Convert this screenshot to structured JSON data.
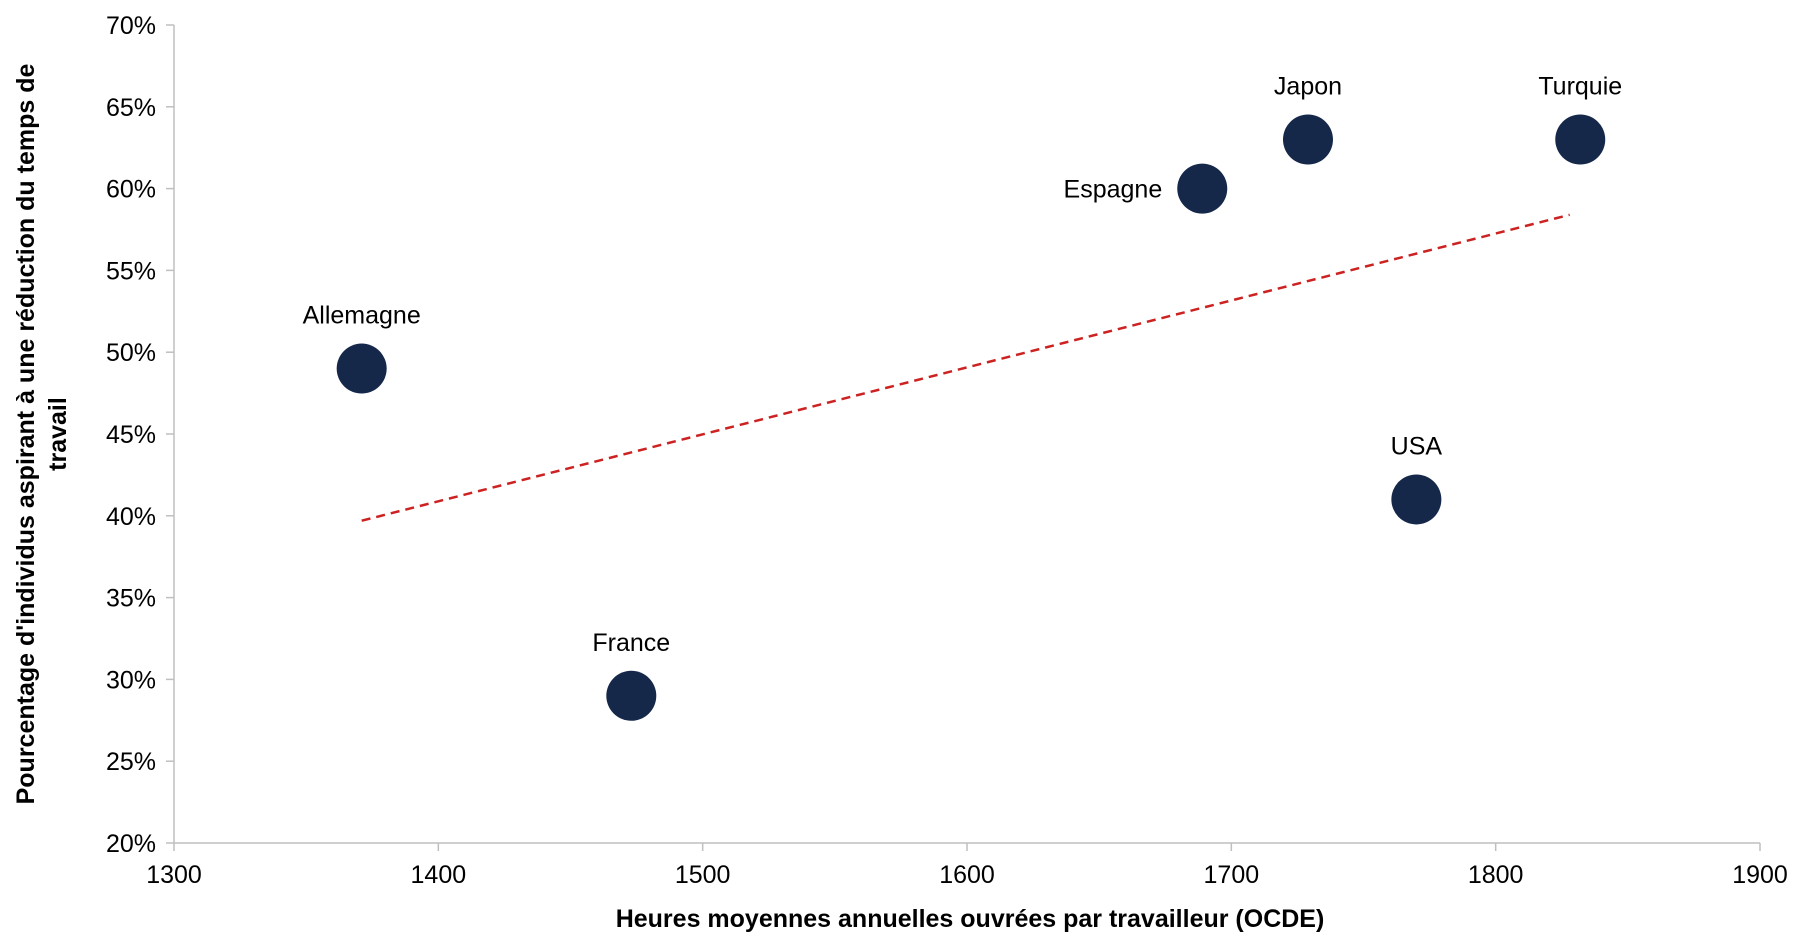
{
  "chart_data": {
    "type": "scatter",
    "title": "",
    "xlabel": "Heures moyennes annuelles ouvrées par travailleur (OCDE)",
    "ylabel_lines": [
      "Pourcentage d'individus  aspirant à une réduction du temps de",
      "travail"
    ],
    "xlim": [
      1300,
      1900
    ],
    "ylim": [
      0.2,
      0.7
    ],
    "x_ticks": [
      1300,
      1400,
      1500,
      1600,
      1700,
      1800,
      1900
    ],
    "x_tick_labels": [
      "1300",
      "1400",
      "1500",
      "1600",
      "1700",
      "1800",
      "1900"
    ],
    "y_ticks": [
      0.2,
      0.25,
      0.3,
      0.35,
      0.4,
      0.45,
      0.5,
      0.55,
      0.6,
      0.65,
      0.7
    ],
    "y_tick_labels": [
      "20%",
      "25%",
      "30%",
      "35%",
      "40%",
      "45%",
      "50%",
      "55%",
      "60%",
      "65%",
      "70%"
    ],
    "points": [
      {
        "label": "Allemagne",
        "x": 1371,
        "y": 0.49
      },
      {
        "label": "France",
        "x": 1473,
        "y": 0.29
      },
      {
        "label": "Espagne",
        "x": 1689,
        "y": 0.6
      },
      {
        "label": "Japon",
        "x": 1729,
        "y": 0.63
      },
      {
        "label": "USA",
        "x": 1770,
        "y": 0.41
      },
      {
        "label": "Turquie",
        "x": 1832,
        "y": 0.63
      }
    ],
    "trendline": {
      "type": "linear",
      "x": [
        1371,
        1828
      ],
      "y": [
        0.397,
        0.584
      ],
      "color": "#cc2222",
      "style": "dashed"
    },
    "point_color": "#15284a",
    "grid": false,
    "legend": "none"
  }
}
